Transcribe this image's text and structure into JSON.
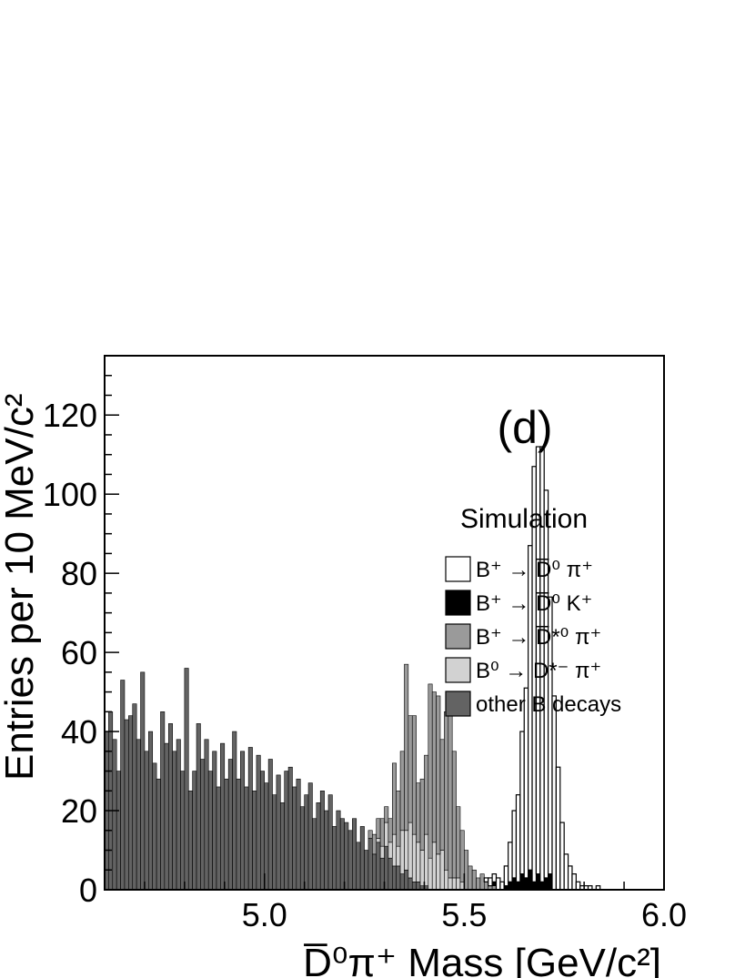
{
  "chart_data": {
    "type": "bar",
    "stacked": true,
    "histogram": true,
    "panel_label": "(d)",
    "xlabel": "D̅⁰π⁺ Mass [GeV/c²]",
    "ylabel": "Entries per 10 MeV/c²",
    "xlim": [
      4.6,
      6.0
    ],
    "ylim": [
      0,
      135
    ],
    "bin_width": 0.01,
    "x_ticks": [
      5.0,
      5.5,
      6.0
    ],
    "x_tick_labels": [
      "5.0",
      "5.5",
      "6.0"
    ],
    "y_ticks": [
      0,
      20,
      40,
      60,
      80,
      100,
      120
    ],
    "y_tick_labels": [
      "0",
      "20",
      "40",
      "60",
      "80",
      "100",
      "120"
    ],
    "legend": {
      "title": "Simulation",
      "position": "right",
      "entries": [
        {
          "label": "B⁺ → D̅⁰ π⁺",
          "color": "#ffffff"
        },
        {
          "label": "B⁺ → D̅⁰ K⁺",
          "color": "#000000"
        },
        {
          "label": "B⁺ → D̅*⁰ π⁺",
          "color": "#9a9a9a"
        },
        {
          "label": "B⁰ → D*⁻ π⁺",
          "color": "#d2d2d2"
        },
        {
          "label": "other B decays",
          "color": "#636363"
        }
      ]
    },
    "series": [
      {
        "name": "other B decays",
        "color": "#636363",
        "x_start": 4.6,
        "values": [
          40,
          45,
          38,
          30,
          53,
          43,
          44,
          47,
          38,
          55,
          35,
          40,
          32,
          28,
          45,
          37,
          42,
          35,
          38,
          30,
          56,
          25,
          30,
          42,
          33,
          38,
          30,
          35,
          26,
          37,
          28,
          33,
          40,
          28,
          35,
          26,
          36,
          25,
          34,
          30,
          27,
          33,
          24,
          29,
          22,
          30,
          31,
          26,
          28,
          21,
          24,
          27,
          18,
          22,
          25,
          20,
          24,
          16,
          20,
          18,
          17,
          15,
          18,
          12,
          16,
          10,
          13,
          9,
          12,
          8,
          11,
          8,
          6,
          6,
          4,
          5,
          3,
          2,
          2,
          1,
          1,
          0,
          0,
          0,
          0,
          0,
          0,
          0,
          0,
          0
        ]
      },
      {
        "name": "B⁰ → D*⁻ π⁺",
        "color": "#d2d2d2",
        "x_start": 4.6,
        "values": [
          0,
          0,
          0,
          0,
          0,
          0,
          0,
          0,
          0,
          0,
          0,
          0,
          0,
          0,
          0,
          0,
          0,
          0,
          0,
          0,
          0,
          0,
          0,
          0,
          0,
          0,
          0,
          0,
          0,
          0,
          0,
          0,
          0,
          0,
          0,
          0,
          0,
          0,
          0,
          0,
          0,
          0,
          0,
          0,
          0,
          0,
          0,
          0,
          0,
          0,
          0,
          0,
          0,
          0,
          0,
          0,
          0,
          0,
          0,
          0,
          0,
          0,
          0,
          0,
          0,
          0,
          0,
          0,
          1,
          3,
          6,
          4,
          8,
          5,
          11,
          10,
          14,
          12,
          10,
          9,
          13,
          8,
          12,
          9,
          10,
          5,
          3,
          3,
          3,
          2
        ]
      },
      {
        "name": "B⁺ → D̅*⁰ π⁺",
        "color": "#9a9a9a",
        "x_start": 4.6,
        "values": [
          0,
          0,
          0,
          0,
          0,
          0,
          0,
          0,
          0,
          0,
          0,
          0,
          0,
          0,
          0,
          0,
          0,
          0,
          0,
          0,
          0,
          0,
          0,
          0,
          0,
          0,
          0,
          0,
          0,
          0,
          0,
          0,
          0,
          0,
          0,
          0,
          0,
          0,
          0,
          0,
          0,
          0,
          0,
          0,
          0,
          0,
          0,
          0,
          0,
          0,
          0,
          0,
          0,
          0,
          0,
          0,
          0,
          0,
          0,
          0,
          0,
          0,
          0,
          0,
          0,
          0,
          2,
          5,
          5,
          7,
          4,
          6,
          18,
          14,
          20,
          42,
          27,
          30,
          15,
          18,
          20,
          44,
          38,
          40,
          28,
          40,
          43,
          32,
          18,
          13,
          10,
          6,
          5,
          3,
          4,
          2,
          1,
          1,
          0,
          0,
          0,
          0,
          0,
          0,
          0,
          0,
          0
        ]
      },
      {
        "name": "B⁺ → D̅⁰ K⁺",
        "color": "#000000",
        "x_start": 4.6,
        "values": [
          0,
          0,
          0,
          0,
          0,
          0,
          0,
          0,
          0,
          0,
          0,
          0,
          0,
          0,
          0,
          0,
          0,
          0,
          0,
          0,
          0,
          0,
          0,
          0,
          0,
          0,
          0,
          0,
          0,
          0,
          0,
          0,
          0,
          0,
          0,
          0,
          0,
          0,
          0,
          0,
          0,
          0,
          0,
          0,
          0,
          0,
          0,
          0,
          0,
          0,
          0,
          0,
          0,
          0,
          0,
          0,
          0,
          0,
          0,
          0,
          0,
          0,
          0,
          0,
          0,
          0,
          0,
          0,
          0,
          0,
          0,
          0,
          0,
          0,
          0,
          0,
          0,
          0,
          0,
          0,
          0,
          0,
          0,
          0,
          0,
          0,
          1,
          0,
          0,
          0,
          0,
          0,
          0,
          0,
          0,
          0,
          0,
          1,
          0,
          0,
          1,
          2,
          3,
          2,
          4,
          3,
          5,
          2,
          4,
          2,
          3,
          4,
          0,
          0
        ]
      },
      {
        "name": "B⁺ → D̅⁰ π⁺",
        "color": "#ffffff",
        "x_start": 4.6,
        "values": [
          0,
          0,
          0,
          0,
          0,
          0,
          0,
          0,
          0,
          0,
          0,
          0,
          0,
          0,
          0,
          0,
          0,
          0,
          0,
          0,
          0,
          0,
          0,
          0,
          0,
          0,
          0,
          0,
          0,
          0,
          0,
          0,
          0,
          0,
          0,
          0,
          0,
          0,
          0,
          0,
          0,
          0,
          0,
          0,
          0,
          0,
          0,
          0,
          0,
          0,
          0,
          0,
          0,
          0,
          0,
          0,
          0,
          0,
          0,
          0,
          0,
          0,
          0,
          0,
          0,
          0,
          0,
          0,
          0,
          0,
          0,
          0,
          0,
          0,
          0,
          0,
          0,
          0,
          0,
          0,
          0,
          0,
          0,
          0,
          0,
          0,
          0,
          0,
          0,
          0,
          0,
          0,
          0,
          0,
          0,
          1,
          2,
          2,
          3,
          2,
          5,
          10,
          17,
          22,
          36,
          48,
          82,
          105,
          108,
          110,
          98,
          70,
          49,
          31,
          17,
          9,
          6,
          4,
          2,
          1,
          1,
          1,
          0,
          1,
          0
        ]
      }
    ]
  }
}
